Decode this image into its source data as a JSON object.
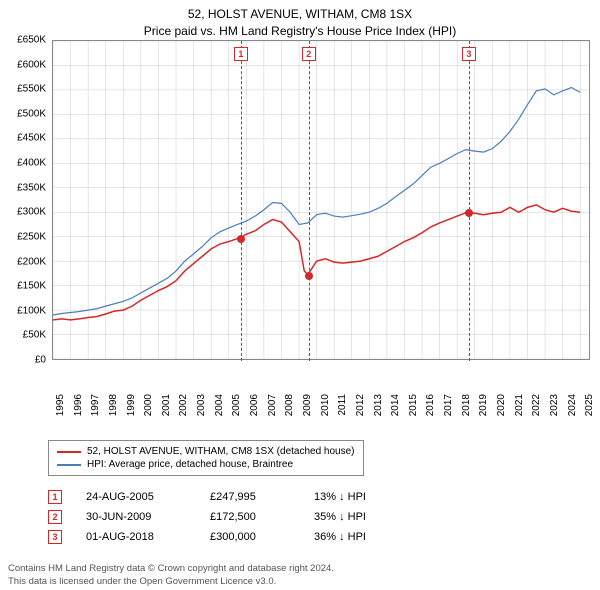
{
  "title_line1": "52, HOLST AVENUE, WITHAM, CM8 1SX",
  "title_line2": "Price paid vs. HM Land Registry's House Price Index (HPI)",
  "chart": {
    "type": "line",
    "background_color": "#ffffff",
    "grid_color": "#cccccc",
    "border_color": "#888888",
    "ylim": [
      0,
      650000
    ],
    "ytick_step": 50000,
    "y_ticks": [
      0,
      50000,
      100000,
      150000,
      200000,
      250000,
      300000,
      350000,
      400000,
      450000,
      500000,
      550000,
      600000,
      650000
    ],
    "y_tick_labels": [
      "£0",
      "£50K",
      "£100K",
      "£150K",
      "£200K",
      "£250K",
      "£300K",
      "£350K",
      "£400K",
      "£450K",
      "£500K",
      "£550K",
      "£600K",
      "£650K"
    ],
    "x_years": [
      1995,
      1996,
      1997,
      1998,
      1999,
      2000,
      2001,
      2002,
      2003,
      2004,
      2005,
      2006,
      2007,
      2008,
      2009,
      2010,
      2011,
      2012,
      2013,
      2014,
      2015,
      2016,
      2017,
      2018,
      2019,
      2020,
      2021,
      2022,
      2023,
      2024,
      2025
    ],
    "xlim": [
      1995,
      2025.5
    ],
    "label_fontsize": 10,
    "series": {
      "property": {
        "color": "#d62728",
        "line_width": 1.5,
        "data": [
          [
            1995.0,
            80000
          ],
          [
            1995.5,
            82000
          ],
          [
            1996.0,
            80000
          ],
          [
            1996.5,
            82000
          ],
          [
            1997.0,
            85000
          ],
          [
            1997.5,
            87000
          ],
          [
            1998.0,
            92000
          ],
          [
            1998.5,
            98000
          ],
          [
            1999.0,
            100000
          ],
          [
            1999.5,
            108000
          ],
          [
            2000.0,
            120000
          ],
          [
            2000.5,
            130000
          ],
          [
            2001.0,
            140000
          ],
          [
            2001.5,
            148000
          ],
          [
            2002.0,
            160000
          ],
          [
            2002.5,
            180000
          ],
          [
            2003.0,
            195000
          ],
          [
            2003.5,
            210000
          ],
          [
            2004.0,
            225000
          ],
          [
            2004.5,
            235000
          ],
          [
            2005.0,
            240000
          ],
          [
            2005.65,
            247995
          ],
          [
            2006.0,
            255000
          ],
          [
            2006.5,
            262000
          ],
          [
            2007.0,
            275000
          ],
          [
            2007.5,
            285000
          ],
          [
            2008.0,
            280000
          ],
          [
            2008.5,
            260000
          ],
          [
            2009.0,
            240000
          ],
          [
            2009.3,
            180000
          ],
          [
            2009.5,
            172500
          ],
          [
            2010.0,
            200000
          ],
          [
            2010.5,
            205000
          ],
          [
            2011.0,
            198000
          ],
          [
            2011.5,
            196000
          ],
          [
            2012.0,
            198000
          ],
          [
            2012.5,
            200000
          ],
          [
            2013.0,
            205000
          ],
          [
            2013.5,
            210000
          ],
          [
            2014.0,
            220000
          ],
          [
            2014.5,
            230000
          ],
          [
            2015.0,
            240000
          ],
          [
            2015.5,
            248000
          ],
          [
            2016.0,
            258000
          ],
          [
            2016.5,
            270000
          ],
          [
            2017.0,
            278000
          ],
          [
            2017.5,
            285000
          ],
          [
            2018.0,
            292000
          ],
          [
            2018.58,
            300000
          ],
          [
            2019.0,
            298000
          ],
          [
            2019.5,
            295000
          ],
          [
            2020.0,
            298000
          ],
          [
            2020.5,
            300000
          ],
          [
            2021.0,
            310000
          ],
          [
            2021.5,
            300000
          ],
          [
            2022.0,
            310000
          ],
          [
            2022.5,
            315000
          ],
          [
            2023.0,
            305000
          ],
          [
            2023.5,
            300000
          ],
          [
            2024.0,
            308000
          ],
          [
            2024.5,
            302000
          ],
          [
            2025.0,
            300000
          ]
        ]
      },
      "hpi": {
        "color": "#4a7ebb",
        "line_width": 1.2,
        "data": [
          [
            1995.0,
            90000
          ],
          [
            1995.5,
            93000
          ],
          [
            1996.0,
            95000
          ],
          [
            1996.5,
            97000
          ],
          [
            1997.0,
            100000
          ],
          [
            1997.5,
            103000
          ],
          [
            1998.0,
            108000
          ],
          [
            1998.5,
            113000
          ],
          [
            1999.0,
            118000
          ],
          [
            1999.5,
            125000
          ],
          [
            2000.0,
            135000
          ],
          [
            2000.5,
            145000
          ],
          [
            2001.0,
            155000
          ],
          [
            2001.5,
            165000
          ],
          [
            2002.0,
            180000
          ],
          [
            2002.5,
            200000
          ],
          [
            2003.0,
            215000
          ],
          [
            2003.5,
            230000
          ],
          [
            2004.0,
            248000
          ],
          [
            2004.5,
            260000
          ],
          [
            2005.0,
            268000
          ],
          [
            2005.5,
            275000
          ],
          [
            2006.0,
            282000
          ],
          [
            2006.5,
            292000
          ],
          [
            2007.0,
            305000
          ],
          [
            2007.5,
            320000
          ],
          [
            2008.0,
            318000
          ],
          [
            2008.5,
            300000
          ],
          [
            2009.0,
            275000
          ],
          [
            2009.5,
            278000
          ],
          [
            2010.0,
            295000
          ],
          [
            2010.5,
            298000
          ],
          [
            2011.0,
            292000
          ],
          [
            2011.5,
            290000
          ],
          [
            2012.0,
            293000
          ],
          [
            2012.5,
            296000
          ],
          [
            2013.0,
            300000
          ],
          [
            2013.5,
            308000
          ],
          [
            2014.0,
            318000
          ],
          [
            2014.5,
            332000
          ],
          [
            2015.0,
            345000
          ],
          [
            2015.5,
            358000
          ],
          [
            2016.0,
            375000
          ],
          [
            2016.5,
            392000
          ],
          [
            2017.0,
            400000
          ],
          [
            2017.5,
            410000
          ],
          [
            2018.0,
            420000
          ],
          [
            2018.5,
            428000
          ],
          [
            2019.0,
            425000
          ],
          [
            2019.5,
            423000
          ],
          [
            2020.0,
            430000
          ],
          [
            2020.5,
            445000
          ],
          [
            2021.0,
            465000
          ],
          [
            2021.5,
            490000
          ],
          [
            2022.0,
            520000
          ],
          [
            2022.5,
            548000
          ],
          [
            2023.0,
            552000
          ],
          [
            2023.5,
            540000
          ],
          [
            2024.0,
            548000
          ],
          [
            2024.5,
            555000
          ],
          [
            2025.0,
            545000
          ]
        ]
      }
    },
    "sale_markers": [
      {
        "n": "1",
        "year": 2005.65,
        "price": 247995,
        "color": "#d62728"
      },
      {
        "n": "2",
        "year": 2009.5,
        "price": 172500,
        "color": "#d62728"
      },
      {
        "n": "3",
        "year": 2018.58,
        "price": 300000,
        "color": "#d62728"
      }
    ]
  },
  "legend": {
    "items": [
      {
        "color": "#d62728",
        "label": "52, HOLST AVENUE, WITHAM, CM8 1SX (detached house)"
      },
      {
        "color": "#4a7ebb",
        "label": "HPI: Average price, detached house, Braintree"
      }
    ]
  },
  "sales": [
    {
      "n": "1",
      "date": "24-AUG-2005",
      "price": "£247,995",
      "delta": "13% ↓ HPI",
      "color": "#d62728"
    },
    {
      "n": "2",
      "date": "30-JUN-2009",
      "price": "£172,500",
      "delta": "35% ↓ HPI",
      "color": "#d62728"
    },
    {
      "n": "3",
      "date": "01-AUG-2018",
      "price": "£300,000",
      "delta": "36% ↓ HPI",
      "color": "#d62728"
    }
  ],
  "footer_line1": "Contains HM Land Registry data © Crown copyright and database right 2024.",
  "footer_line2": "This data is licensed under the Open Government Licence v3.0."
}
